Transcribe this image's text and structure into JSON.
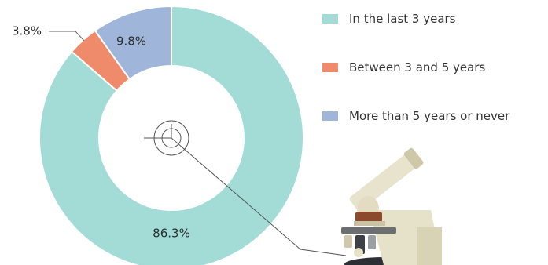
{
  "chart_data": {
    "type": "pie",
    "donut": true,
    "categories": [
      "In the last 3 years",
      "Between 3 and 5 years",
      "More than 5 years or never"
    ],
    "values": [
      86.3,
      3.8,
      9.8
    ],
    "value_labels": [
      "86.3%",
      "3.8%",
      "9.8%"
    ],
    "colors": [
      "#a3dcd7",
      "#ef8a6b",
      "#9fb5d9"
    ],
    "legend_position": "right"
  },
  "legend": {
    "items": [
      {
        "label": "In the last 3 years",
        "color": "#a3dcd7"
      },
      {
        "label": "Between 3 and 5 years",
        "color": "#ef8a6b"
      },
      {
        "label": "More than 5 years or never",
        "color": "#9fb5d9"
      }
    ]
  },
  "illustration": {
    "icon": "microscope-icon"
  }
}
